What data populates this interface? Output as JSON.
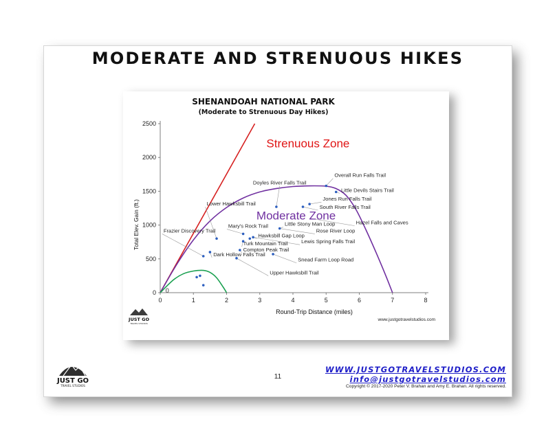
{
  "slide": {
    "title": "MODERATE AND STRENUOUS HIKES",
    "page_number": "11",
    "website": "WWW.JUSTGOTRAVELSTUDIOS.COM",
    "email": "info@justgotravelstudios.com",
    "copyright": "Copyright © 2017-2020 Peter V. Brahan and Amy E. Brahan.  All rights reserved.",
    "logo_text": "JUST GO",
    "logo_subtext": "TRAVEL STUDIOS"
  },
  "chart_data": {
    "type": "scatter",
    "title": "SHENANDOAH NATIONAL PARK",
    "subtitle": "(Moderate to Strenuous Day Hikes)",
    "xlabel": "Round-Trip Distance (miles)",
    "ylabel": "Total Elev. Gain (ft.)",
    "xlim": [
      0,
      8
    ],
    "ylim": [
      0,
      2500
    ],
    "xticks": [
      0,
      1,
      2,
      3,
      4,
      5,
      6,
      7,
      8
    ],
    "yticks": [
      0,
      500,
      1000,
      1500,
      2000,
      2500
    ],
    "grid": false,
    "source_note": "www.justgotravelstudios.com",
    "zone_labels": [
      {
        "text": "Strenuous Zone",
        "x": 3.2,
        "y": 2150,
        "color": "#e01414"
      },
      {
        "text": "Moderate Zone",
        "x": 2.9,
        "y": 1080,
        "color": "#7030a0"
      },
      {
        "text": "0",
        "x": 0.16,
        "y": 0,
        "color": "#333333"
      }
    ],
    "boundary_lines": [
      {
        "name": "strenuous",
        "color": "#d62020",
        "points": [
          [
            0,
            0
          ],
          [
            2.85,
            2500
          ]
        ]
      },
      {
        "name": "moderate",
        "color": "#7030a0",
        "points": [
          [
            0,
            0
          ],
          [
            0.5,
            420
          ],
          [
            1,
            780
          ],
          [
            1.5,
            1060
          ],
          [
            2,
            1260
          ],
          [
            2.5,
            1400
          ],
          [
            3,
            1490
          ],
          [
            3.5,
            1540
          ],
          [
            4,
            1570
          ],
          [
            4.5,
            1580
          ],
          [
            5,
            1575
          ],
          [
            5.3,
            1540
          ],
          [
            5.6,
            1440
          ],
          [
            5.9,
            1230
          ],
          [
            6.2,
            930
          ],
          [
            6.5,
            600
          ],
          [
            6.8,
            250
          ],
          [
            7,
            0
          ]
        ]
      },
      {
        "name": "easy",
        "color": "#1aa050",
        "points": [
          [
            0,
            0
          ],
          [
            0.4,
            190
          ],
          [
            0.7,
            280
          ],
          [
            1,
            320
          ],
          [
            1.3,
            330
          ],
          [
            1.5,
            300
          ],
          [
            1.7,
            220
          ],
          [
            1.9,
            80
          ],
          [
            2,
            0
          ]
        ]
      }
    ],
    "points": [
      {
        "x": 1.1,
        "y": 230
      },
      {
        "x": 1.2,
        "y": 250
      },
      {
        "x": 1.3,
        "y": 110
      },
      {
        "x": 1.3,
        "y": 540
      },
      {
        "x": 1.5,
        "y": 600
      },
      {
        "x": 1.7,
        "y": 800
      },
      {
        "x": 2.3,
        "y": 510
      },
      {
        "x": 2.4,
        "y": 630
      },
      {
        "x": 2.5,
        "y": 760
      },
      {
        "x": 2.5,
        "y": 870
      },
      {
        "x": 2.7,
        "y": 800
      },
      {
        "x": 2.8,
        "y": 820
      },
      {
        "x": 3.4,
        "y": 570
      },
      {
        "x": 3.5,
        "y": 1270
      },
      {
        "x": 3.6,
        "y": 950
      },
      {
        "x": 4.3,
        "y": 1270
      },
      {
        "x": 4.5,
        "y": 1310
      },
      {
        "x": 5.0,
        "y": 1580
      },
      {
        "x": 5.3,
        "y": 1490
      }
    ],
    "annotations": [
      {
        "text": "Overall Run Falls Trail",
        "x": 5.25,
        "y": 1710,
        "anchor": "start",
        "tx": 5.0,
        "ty": 1580
      },
      {
        "text": "Little Devils Stairs Trail",
        "x": 5.45,
        "y": 1490,
        "anchor": "start",
        "tx": 5.3,
        "ty": 1490
      },
      {
        "text": "Doyles River Falls Trail",
        "x": 3.6,
        "y": 1600,
        "anchor": "middle",
        "tx": 3.5,
        "ty": 1270
      },
      {
        "text": "Jones Run Falls Trail",
        "x": 4.9,
        "y": 1360,
        "anchor": "start",
        "tx": 4.5,
        "ty": 1310
      },
      {
        "text": "South River Falls Trail",
        "x": 4.8,
        "y": 1240,
        "anchor": "start",
        "tx": 4.3,
        "ty": 1270
      },
      {
        "text": "Lower Hawksbill Trail",
        "x": 1.4,
        "y": 1290,
        "anchor": "start",
        "tx": 1.7,
        "ty": 800
      },
      {
        "text": "Hazel Falls and Caves",
        "x": 5.9,
        "y": 1010,
        "anchor": "start",
        "tx": 4.5,
        "ty": 1100
      },
      {
        "text": "Little Stony Man Loop",
        "x": 3.75,
        "y": 990,
        "anchor": "start",
        "tx": 3.6,
        "ty": 950
      },
      {
        "text": "Mary's Rock Trail",
        "x": 2.05,
        "y": 960,
        "anchor": "start",
        "tx": 2.5,
        "ty": 870
      },
      {
        "text": "Rose River Loop",
        "x": 4.7,
        "y": 890,
        "anchor": "start",
        "tx": 3.6,
        "ty": 950
      },
      {
        "text": "Frazier Discovery Trail",
        "x": 0.1,
        "y": 890,
        "anchor": "start",
        "tx": 1.3,
        "ty": 540
      },
      {
        "text": "Hawksbill Gap Loop",
        "x": 2.95,
        "y": 820,
        "anchor": "start",
        "tx": 2.8,
        "ty": 820
      },
      {
        "text": "Lewis Spring Falls Trail",
        "x": 4.25,
        "y": 730,
        "anchor": "start",
        "tx": 2.8,
        "ty": 820
      },
      {
        "text": "Turk Mountain Trail",
        "x": 2.5,
        "y": 700,
        "anchor": "start",
        "tx": 2.5,
        "ty": 760
      },
      {
        "text": "Compton Peak Trail",
        "x": 2.5,
        "y": 610,
        "anchor": "start",
        "tx": 2.4,
        "ty": 630
      },
      {
        "text": "Dark Hollow Falls Trail",
        "x": 1.6,
        "y": 540,
        "anchor": "start",
        "tx": 1.5,
        "ty": 600
      },
      {
        "text": "Snead Farm Loop Road",
        "x": 4.15,
        "y": 460,
        "anchor": "start",
        "tx": 3.4,
        "ty": 570
      },
      {
        "text": "Upper Hawksbill Trail",
        "x": 3.3,
        "y": 270,
        "anchor": "start",
        "tx": 2.3,
        "ty": 510
      }
    ],
    "colors": {
      "points": "#2d5fbf",
      "leader_lines": "#9a9a9a",
      "axis": "#7f7f7f",
      "strenuous": "#d62020",
      "moderate": "#7030a0",
      "easy": "#1aa050"
    }
  }
}
